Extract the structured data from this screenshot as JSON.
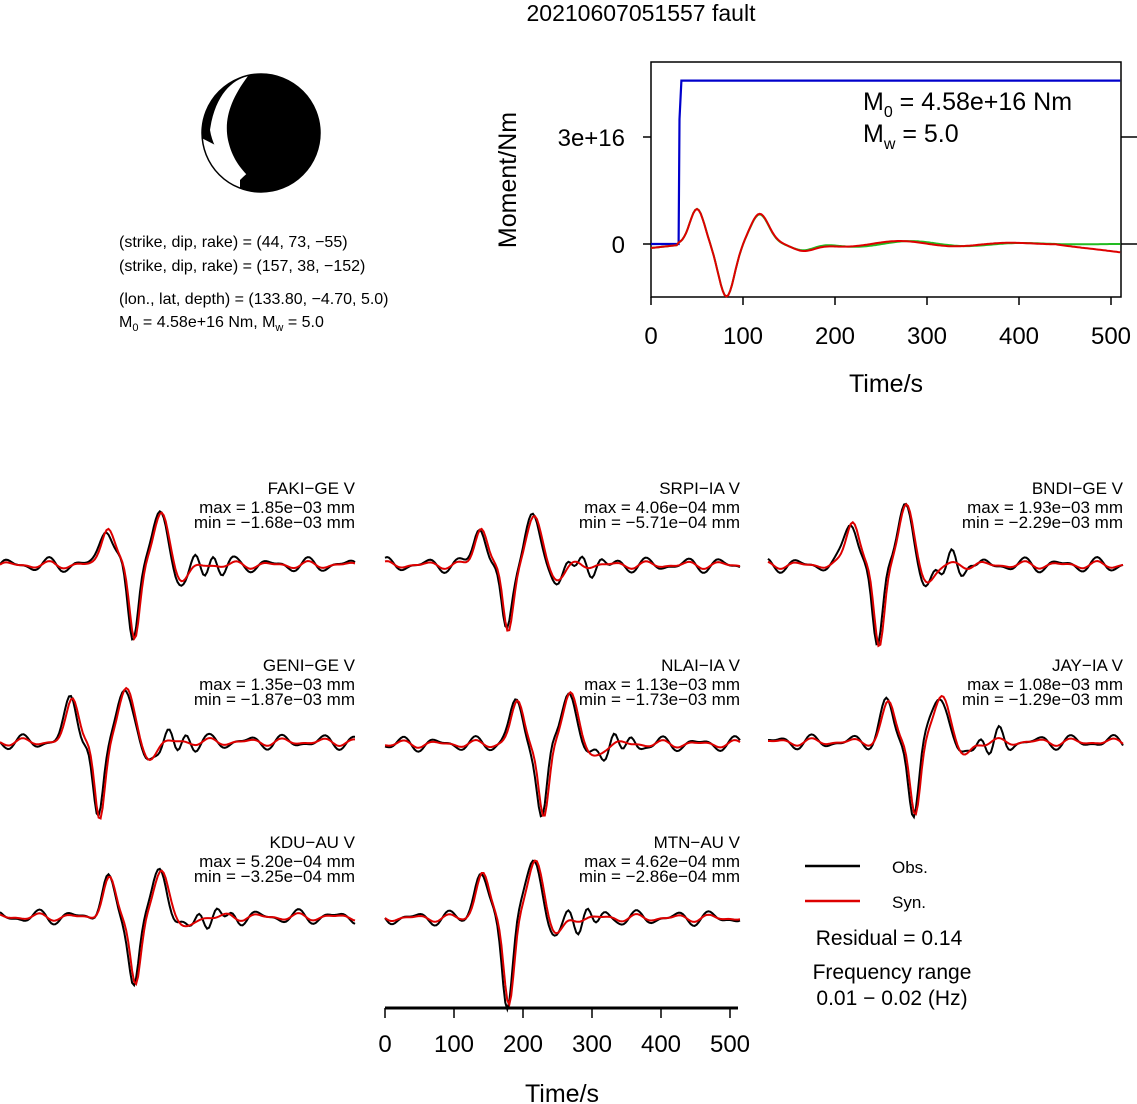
{
  "title": "20210607051557 fault",
  "mechanism": {
    "np1": "(strike, dip, rake) = (44, 73, −55)",
    "np2": "(strike, dip, rake) = (157, 38, −152)",
    "location": "(lon., lat, depth) = (133.80, −4.70, 5.0)",
    "m0_label": "M",
    "m0_sub": "0",
    "m0_value": " = 4.58e+16 Nm, M",
    "mw_sub": "w",
    "mw_value": " = 5.0"
  },
  "colors": {
    "obs": "#000000",
    "syn": "#dd0000",
    "moment": "#0000cc",
    "stf2": "#22bb22"
  },
  "chart_data": [
    {
      "type": "line",
      "name": "moment-rate",
      "xlabel": "Time/s",
      "ylabel": "Moment/Nm",
      "xlim": [
        0,
        510
      ],
      "xticks": [
        "0",
        "100",
        "200",
        "300",
        "400",
        "500"
      ],
      "yticks": [
        "0",
        "3e+16"
      ],
      "annotation": {
        "m0_main": "M",
        "m0_sub": "0",
        "m0_rest": " = 4.58e+16 Nm",
        "mw_main": "M",
        "mw_sub": "w",
        "mw_rest": " = 5.0"
      },
      "series": [
        {
          "role": "cumulative-moment",
          "x": [
            0,
            30,
            31,
            33,
            510
          ],
          "y": [
            0,
            0,
            3.5e+16,
            4.58e+16,
            4.58e+16
          ]
        }
      ]
    },
    {
      "type": "line",
      "name": "waveforms",
      "xlabel": "Time/s",
      "xticks": [
        "0",
        "100",
        "200",
        "300",
        "400",
        "500"
      ],
      "xlim": [
        0,
        510
      ],
      "legend": [
        "Obs.",
        "Syn."
      ],
      "residual": "Residual = 0.14",
      "freq_title": "Frequency range",
      "freq_range": "0.01 − 0.02 (Hz)",
      "stations": [
        {
          "name": "FAKI−GE V",
          "max": "max = 1.85e−03 mm",
          "min": "min = −1.68e−03 mm"
        },
        {
          "name": "SRPI−IA V",
          "max": "max = 4.06e−04 mm",
          "min": "min = −5.71e−04 mm"
        },
        {
          "name": "BNDI−GE V",
          "max": "max = 1.93e−03 mm",
          "min": "min = −2.29e−03 mm"
        },
        {
          "name": "GENI−GE V",
          "max": "max = 1.35e−03 mm",
          "min": "min = −1.87e−03 mm"
        },
        {
          "name": "NLAI−IA V",
          "max": "max = 1.13e−03 mm",
          "min": "min = −1.73e−03 mm"
        },
        {
          "name": "JAY−IA V",
          "max": "max = 1.08e−03 mm",
          "min": "min = −1.29e−03 mm"
        },
        {
          "name": "KDU−AU V",
          "max": "max = 5.20e−04 mm",
          "min": "min = −3.25e−04 mm"
        },
        {
          "name": "MTN−AU V",
          "max": "max = 4.62e−04 mm",
          "min": "min = −2.86e−04 mm"
        }
      ]
    }
  ]
}
